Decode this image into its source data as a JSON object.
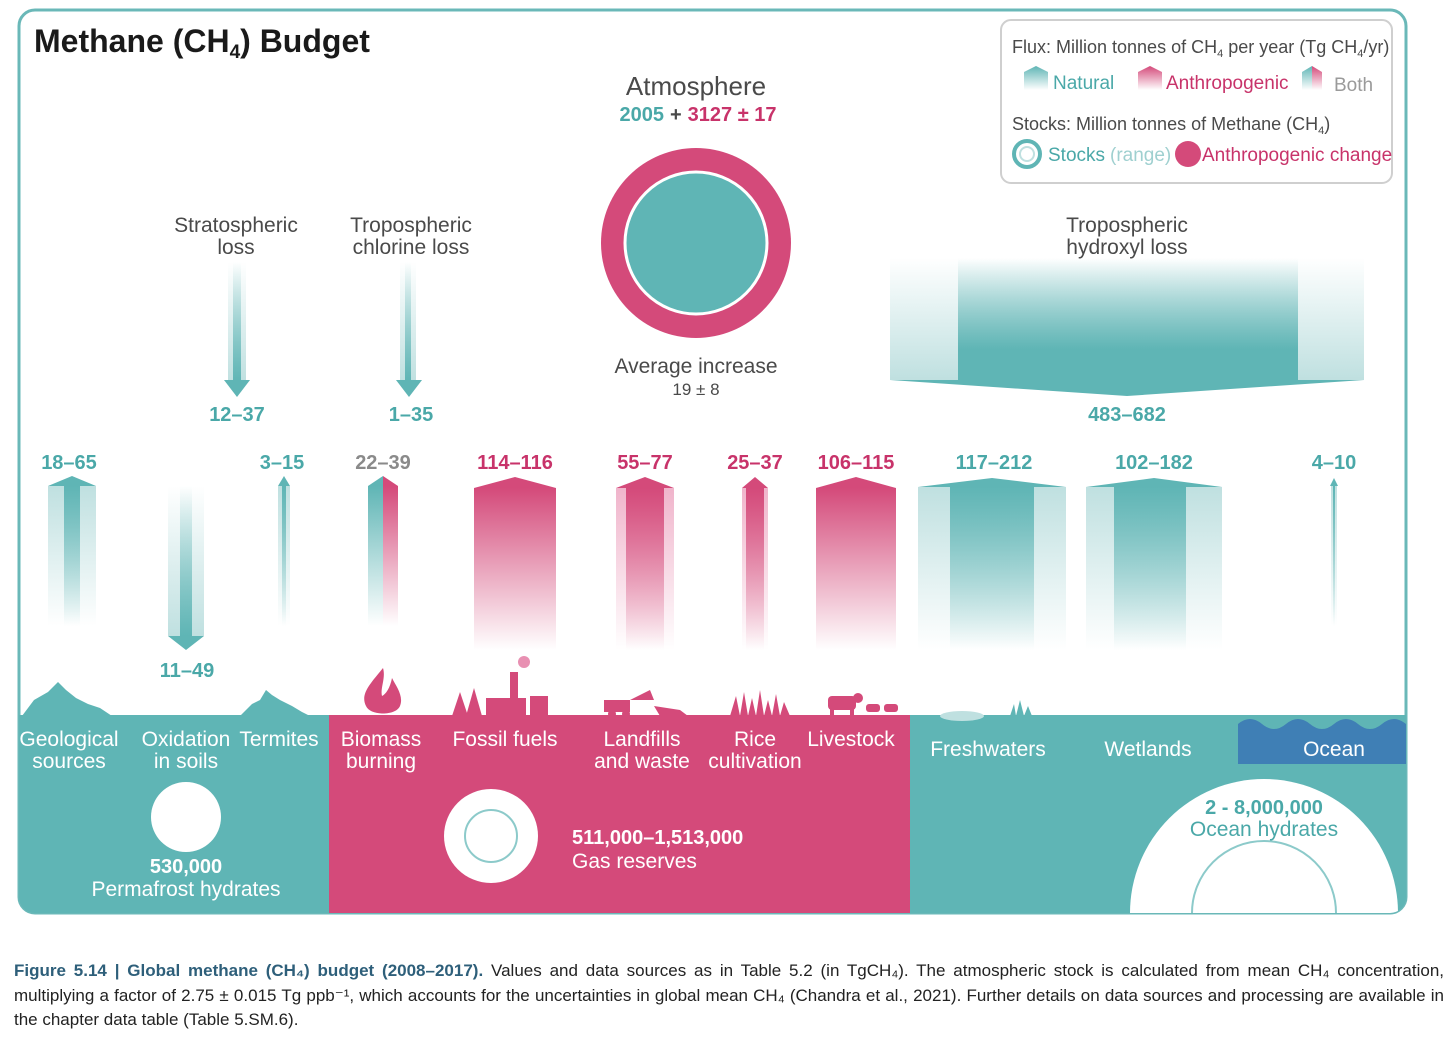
{
  "title": {
    "text": "Methane (CH",
    "sub": "4",
    "tail": ") Budget"
  },
  "legend": {
    "flux_label": {
      "pre": "Flux: Million tonnes of CH",
      "sub": "4",
      "mid": " per year (Tg CH",
      "sub2": "4",
      "post": "/yr)"
    },
    "natural": "Natural",
    "anthropogenic": "Anthropogenic",
    "both": "Both",
    "stocks_label": {
      "pre": "Stocks: Million tonnes of Methane (CH",
      "sub": "4",
      "post": ")"
    },
    "stocks": "Stocks",
    "range": "(range)",
    "anthro_change": "Anthropogenic change"
  },
  "atmosphere": {
    "label": "Atmosphere",
    "natural_value": "2005",
    "plus": "+",
    "anthro_value": "3127 ± 17",
    "increase_label": "Average increase",
    "increase_value": "19 ± 8"
  },
  "sinks": {
    "stratospheric": {
      "line1": "Stratospheric",
      "line2": "loss",
      "value": "12–37"
    },
    "chlorine": {
      "line1": "Tropospheric",
      "line2": "chlorine loss",
      "value": "1–35"
    },
    "hydroxyl": {
      "line1": "Tropospheric",
      "line2": "hydroxyl loss",
      "value": "483–682"
    }
  },
  "fluxes": {
    "geological": "18–65",
    "oxidation": "11–49",
    "termites": "3–15",
    "biomass": "22–39",
    "fossil": "114–116",
    "landfills": "55–77",
    "rice": "25–37",
    "livestock": "106–115",
    "freshwaters": "117–212",
    "wetlands": "102–182",
    "ocean": "4–10"
  },
  "sources": {
    "geological": [
      "Geological",
      "sources"
    ],
    "oxidation": [
      "Oxidation",
      "in soils"
    ],
    "termites": [
      "Termites"
    ],
    "biomass": [
      "Biomass",
      "burning"
    ],
    "fossil": [
      "Fossil fuels"
    ],
    "landfills": [
      "Landfills",
      "and waste"
    ],
    "rice": [
      "Rice",
      "cultivation"
    ],
    "livestock": [
      "Livestock"
    ],
    "freshwaters": [
      "Freshwaters"
    ],
    "wetlands": [
      "Wetlands"
    ],
    "ocean": [
      "Ocean"
    ]
  },
  "stocks": {
    "permafrost": {
      "value": "530,000",
      "label": "Permafrost hydrates"
    },
    "gas": {
      "value": "511,000–1,513,000",
      "label": "Gas reserves"
    },
    "ocean": {
      "value": "2 - 8,000,000",
      "label": "Ocean hydrates"
    }
  },
  "caption": {
    "head": "Figure 5.14 | Global methane (CH₄) budget (2008–2017).",
    "body": " Values and data sources as in Table 5.2 (in TgCH₄). The atmospheric stock is calculated from mean CH₄ concentration, multiplying a factor of 2.75 ± 0.015 Tg ppb⁻¹, which accounts for the uncertainties in global mean CH₄ (Chandra et al., 2021). Further details on data sources and processing are available in the chapter data table (Table 5.SM.6)."
  },
  "colors": {
    "natural": "#5fb5b5",
    "anthropogenic": "#d44a7a",
    "natural_text": "#4aa8a8",
    "anthro_text": "#c8336a",
    "neutral_text": "#4a4a4a"
  }
}
